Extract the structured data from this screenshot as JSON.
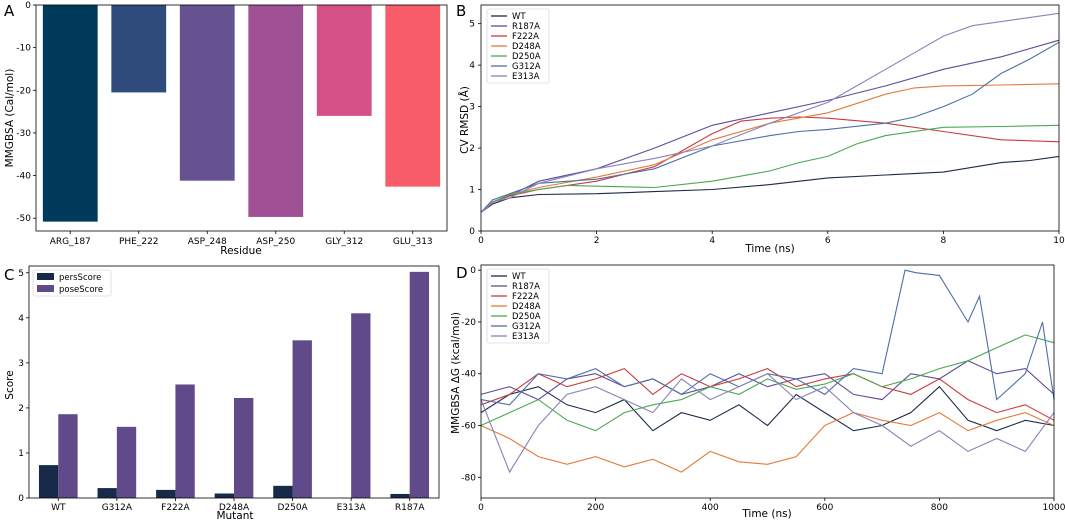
{
  "colors": {
    "A_bars": [
      "#003a5a",
      "#2e4b7c",
      "#665191",
      "#a05195",
      "#d45087",
      "#f95d6a"
    ],
    "persScore": "#172a4a",
    "poseScore": "#604a8a",
    "mutants": {
      "WT": "#1b2b46",
      "R187A": "#5d4e99",
      "F222A": "#cc3a3e",
      "D248A": "#e47a3a",
      "D250A": "#4aa852",
      "G312A": "#4d6fa7",
      "E313A": "#8a82b8"
    }
  },
  "chart_data": [
    {
      "panel": "A",
      "type": "bar",
      "categories": [
        "ARG_187",
        "PHE_222",
        "ASP_248",
        "ASP_250",
        "GLY_312",
        "GLU_313"
      ],
      "values": [
        -50.8,
        -20.5,
        -41.2,
        -49.7,
        -26.0,
        -42.6
      ],
      "xlabel": "Residue",
      "ylabel": "MMGBSA (Cal/mol)",
      "ylim": [
        -53,
        0
      ],
      "yticks": [
        0,
        -10,
        -20,
        -30,
        -40,
        -50
      ],
      "ytick_labels": [
        "0",
        "-10",
        "-20",
        "-30",
        "-40",
        "-50"
      ]
    },
    {
      "panel": "B",
      "type": "line",
      "xlabel": "Time (ns)",
      "ylabel": "CV RMSD (Å)",
      "xlim": [
        0,
        10
      ],
      "ylim": [
        0,
        5.45
      ],
      "xticks": [
        0,
        2,
        4,
        6,
        8,
        10
      ],
      "yticks": [
        0,
        1,
        2,
        3,
        4,
        5
      ],
      "legend": "top-left",
      "series": [
        {
          "name": "WT",
          "x": [
            0,
            0.2,
            0.5,
            1,
            2,
            3,
            4,
            5,
            6,
            7,
            8,
            9,
            9.5,
            10
          ],
          "y": [
            0.45,
            0.65,
            0.8,
            0.88,
            0.9,
            0.95,
            1.0,
            1.12,
            1.28,
            1.35,
            1.42,
            1.65,
            1.7,
            1.8
          ]
        },
        {
          "name": "R187A",
          "x": [
            0,
            0.2,
            0.5,
            1,
            2,
            3,
            4,
            5,
            6,
            7,
            8,
            9,
            10
          ],
          "y": [
            0.45,
            0.7,
            0.85,
            1.2,
            1.5,
            2.0,
            2.55,
            2.85,
            3.15,
            3.5,
            3.9,
            4.2,
            4.6
          ]
        },
        {
          "name": "F222A",
          "x": [
            0,
            0.2,
            0.5,
            1,
            2,
            3,
            3.5,
            4,
            4.5,
            5,
            5.5,
            6,
            7,
            8,
            9,
            10
          ],
          "y": [
            0.45,
            0.7,
            0.85,
            1.0,
            1.2,
            1.55,
            1.95,
            2.35,
            2.65,
            2.72,
            2.75,
            2.72,
            2.6,
            2.4,
            2.2,
            2.15
          ]
        },
        {
          "name": "D248A",
          "x": [
            0,
            0.2,
            0.5,
            1,
            2,
            3,
            4,
            5,
            6,
            7,
            7.5,
            8,
            9,
            10
          ],
          "y": [
            0.45,
            0.68,
            0.88,
            1.05,
            1.3,
            1.6,
            2.2,
            2.6,
            2.85,
            3.3,
            3.45,
            3.5,
            3.52,
            3.55
          ]
        },
        {
          "name": "D250A",
          "x": [
            0,
            0.2,
            0.5,
            1,
            1.5,
            2,
            3,
            4,
            5,
            5.5,
            6,
            6.5,
            7,
            8,
            9,
            10
          ],
          "y": [
            0.45,
            0.7,
            0.88,
            1.0,
            1.1,
            1.08,
            1.05,
            1.2,
            1.45,
            1.65,
            1.8,
            2.1,
            2.3,
            2.5,
            2.52,
            2.55
          ]
        },
        {
          "name": "G312A",
          "x": [
            0,
            0.2,
            0.5,
            1,
            2,
            3,
            4,
            5,
            5.5,
            6,
            7,
            7.5,
            8,
            8.5,
            9,
            9.5,
            10
          ],
          "y": [
            0.45,
            0.75,
            0.9,
            1.15,
            1.25,
            1.5,
            2.05,
            2.3,
            2.4,
            2.45,
            2.6,
            2.75,
            3.0,
            3.3,
            3.8,
            4.15,
            4.55
          ]
        },
        {
          "name": "E313A",
          "x": [
            0,
            0.2,
            0.5,
            1,
            2,
            3,
            4,
            5,
            6,
            6.5,
            7,
            7.5,
            8,
            8.5,
            9,
            9.5,
            10
          ],
          "y": [
            0.45,
            0.7,
            0.8,
            1.15,
            1.5,
            1.75,
            2.05,
            2.6,
            3.1,
            3.5,
            3.9,
            4.3,
            4.7,
            4.95,
            5.05,
            5.15,
            5.25
          ]
        }
      ]
    },
    {
      "panel": "C",
      "type": "bar",
      "categories": [
        "WT",
        "G312A",
        "F222A",
        "D248A",
        "D250A",
        "E313A",
        "R187A"
      ],
      "xlabel": "Mutant",
      "ylabel": "Score",
      "ylim": [
        0,
        5.15
      ],
      "yticks": [
        0,
        1,
        2,
        3,
        4,
        5
      ],
      "legend": "top-left",
      "series": [
        {
          "name": "persScore",
          "values": [
            0.73,
            0.22,
            0.18,
            0.1,
            0.27,
            0.0,
            0.09
          ]
        },
        {
          "name": "poseScore",
          "values": [
            1.86,
            1.58,
            2.52,
            2.22,
            3.5,
            4.1,
            5.02
          ]
        }
      ]
    },
    {
      "panel": "D",
      "type": "line",
      "xlabel": "Time (ns)",
      "ylabel": "MMGBSA ΔG (kcal/mol)",
      "xlim": [
        0,
        1000
      ],
      "ylim": [
        -88,
        2
      ],
      "xticks": [
        0,
        200,
        400,
        600,
        800,
        1000
      ],
      "yticks": [
        0,
        -20,
        -40,
        -60,
        -80
      ],
      "legend": "top-left",
      "series": [
        {
          "name": "WT",
          "x": [
            0,
            50,
            100,
            150,
            200,
            250,
            300,
            350,
            400,
            450,
            500,
            550,
            600,
            650,
            700,
            750,
            800,
            850,
            900,
            950,
            1000
          ],
          "y": [
            -55,
            -48,
            -45,
            -52,
            -55,
            -50,
            -62,
            -55,
            -58,
            -52,
            -60,
            -48,
            -55,
            -62,
            -60,
            -55,
            -45,
            -58,
            -62,
            -58,
            -60
          ]
        },
        {
          "name": "R187A",
          "x": [
            0,
            50,
            100,
            150,
            200,
            250,
            300,
            350,
            400,
            450,
            500,
            550,
            600,
            650,
            700,
            750,
            800,
            850,
            900,
            950,
            1000
          ],
          "y": [
            -48,
            -45,
            -50,
            -42,
            -40,
            -45,
            -42,
            -48,
            -45,
            -40,
            -45,
            -42,
            -40,
            -48,
            -50,
            -40,
            -42,
            -35,
            -40,
            -38,
            -48
          ]
        },
        {
          "name": "F222A",
          "x": [
            0,
            50,
            100,
            150,
            200,
            250,
            300,
            350,
            400,
            450,
            500,
            550,
            600,
            650,
            700,
            750,
            800,
            850,
            900,
            950,
            1000
          ],
          "y": [
            -52,
            -48,
            -40,
            -45,
            -42,
            -38,
            -48,
            -40,
            -45,
            -42,
            -38,
            -45,
            -42,
            -40,
            -45,
            -48,
            -42,
            -50,
            -55,
            -52,
            -58
          ]
        },
        {
          "name": "D248A",
          "x": [
            0,
            50,
            100,
            150,
            200,
            250,
            300,
            350,
            400,
            450,
            500,
            550,
            600,
            650,
            700,
            750,
            800,
            850,
            900,
            950,
            1000
          ],
          "y": [
            -60,
            -65,
            -72,
            -75,
            -72,
            -76,
            -73,
            -78,
            -70,
            -74,
            -75,
            -72,
            -60,
            -55,
            -58,
            -60,
            -55,
            -62,
            -58,
            -55,
            -60
          ]
        },
        {
          "name": "D250A",
          "x": [
            0,
            50,
            100,
            150,
            200,
            250,
            300,
            350,
            400,
            450,
            500,
            550,
            600,
            650,
            700,
            750,
            800,
            850,
            900,
            950,
            1000
          ],
          "y": [
            -60,
            -55,
            -50,
            -58,
            -62,
            -55,
            -52,
            -50,
            -45,
            -48,
            -42,
            -46,
            -44,
            -40,
            -45,
            -42,
            -38,
            -35,
            -30,
            -25,
            -28
          ]
        },
        {
          "name": "G312A",
          "x": [
            0,
            50,
            100,
            150,
            200,
            250,
            300,
            350,
            400,
            450,
            500,
            550,
            600,
            650,
            700,
            720,
            740,
            760,
            800,
            850,
            870,
            900,
            950,
            980,
            1000
          ],
          "y": [
            -50,
            -52,
            -40,
            -42,
            -38,
            -45,
            -42,
            -48,
            -40,
            -45,
            -40,
            -42,
            -48,
            -38,
            -40,
            -20,
            0,
            -1,
            -2,
            -20,
            -10,
            -50,
            -40,
            -20,
            -50
          ]
        },
        {
          "name": "E313A",
          "x": [
            0,
            50,
            100,
            150,
            200,
            250,
            300,
            350,
            400,
            450,
            500,
            550,
            600,
            650,
            700,
            750,
            800,
            850,
            900,
            950,
            1000
          ],
          "y": [
            -50,
            -78,
            -60,
            -48,
            -45,
            -50,
            -55,
            -42,
            -50,
            -45,
            -40,
            -50,
            -45,
            -55,
            -60,
            -68,
            -62,
            -70,
            -65,
            -70,
            -55
          ]
        }
      ]
    }
  ],
  "labels": {
    "A": {
      "panel": "A",
      "ylabel": "MMGBSA (Cal/mol)",
      "xlabel": "Residue"
    },
    "B": {
      "panel": "B",
      "ylabel": "CV RMSD (Å)",
      "xlabel": "Time (ns)"
    },
    "C": {
      "panel": "C",
      "ylabel": "Score",
      "xlabel": "Mutant"
    },
    "D": {
      "panel": "D",
      "ylabel": "MMGBSA ΔG (kcal/mol)",
      "xlabel": "Time (ns)"
    }
  }
}
